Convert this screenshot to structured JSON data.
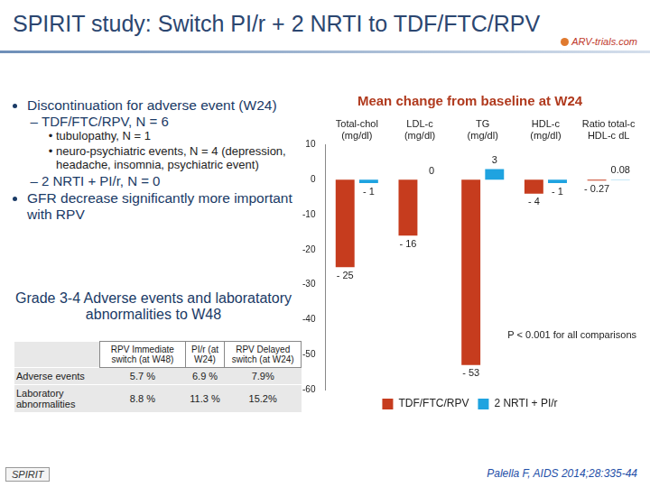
{
  "slide": {
    "title": "SPIRIT study: Switch PI/r + 2 NRTI to TDF/FTC/RPV",
    "logo": "ARV-trials.com",
    "bullets": [
      {
        "text": "Discontinuation for adverse event (W24)",
        "children": [
          {
            "text": "TDF/FTC/RPV, N = 6",
            "children": [
              {
                "text": "tubulopathy, N = 1",
                "children": []
              },
              {
                "text": "neuro-psychiatric events, N = 4 (depression, headache, insomnia, psychiatric event)",
                "children": []
              }
            ]
          },
          {
            "text": "2 NRTI + PI/r, N = 0",
            "children": []
          }
        ]
      },
      {
        "text": "GFR decrease significantly more important with RPV",
        "children": []
      }
    ],
    "table": {
      "title": "Grade 3-4 Adverse events and laboratatory abnormalities to W48",
      "header": [
        "",
        "RPV Immediate switch (at W48)",
        "PI/r (at W24)",
        "RPV Delayed switch (at W24)"
      ],
      "rows": [
        [
          "Adverse events",
          "5.7 %",
          "6.9 %",
          "7.9%"
        ],
        [
          "Laboratory abnormalities",
          "8.8 %",
          "11.3 %",
          "15.2%"
        ]
      ]
    },
    "footer": "SPIRIT",
    "citation": "Palella F, AIDS 2014;28:335-44"
  },
  "chart_data": {
    "type": "bar",
    "title": "Mean change from baseline at W24",
    "categories": [
      [
        "Total-chol",
        "(mg/dl)"
      ],
      [
        "LDL-c",
        "(mg/dl)"
      ],
      [
        "TG",
        "(mg/dl)"
      ],
      [
        "HDL-c",
        "(mg/dl)"
      ],
      [
        "Ratio total-c",
        "HDL-c dL"
      ]
    ],
    "series": [
      {
        "name": "TDF/FTC/RPV",
        "color": "#c63c1e",
        "values": [
          -25,
          -16,
          -53,
          -4,
          -0.27
        ],
        "value_labels": [
          "- 25",
          "- 16",
          "- 53",
          "- 4",
          "- 0.27"
        ]
      },
      {
        "name": "2 NRTI + PI/r",
        "color": "#1fa3e0",
        "values": [
          -1,
          0,
          3,
          -1,
          0.08
        ],
        "value_labels": [
          "- 1",
          "0",
          "3",
          "- 1",
          "0.08"
        ]
      }
    ],
    "ylim": [
      -60,
      10
    ],
    "yticks": [
      -60,
      -50,
      -40,
      -30,
      -20,
      -10,
      0,
      10
    ],
    "grid": false,
    "legend": "bottom",
    "data_labels": true,
    "annotations": [
      "P < 0.001 for all comparisons"
    ]
  }
}
